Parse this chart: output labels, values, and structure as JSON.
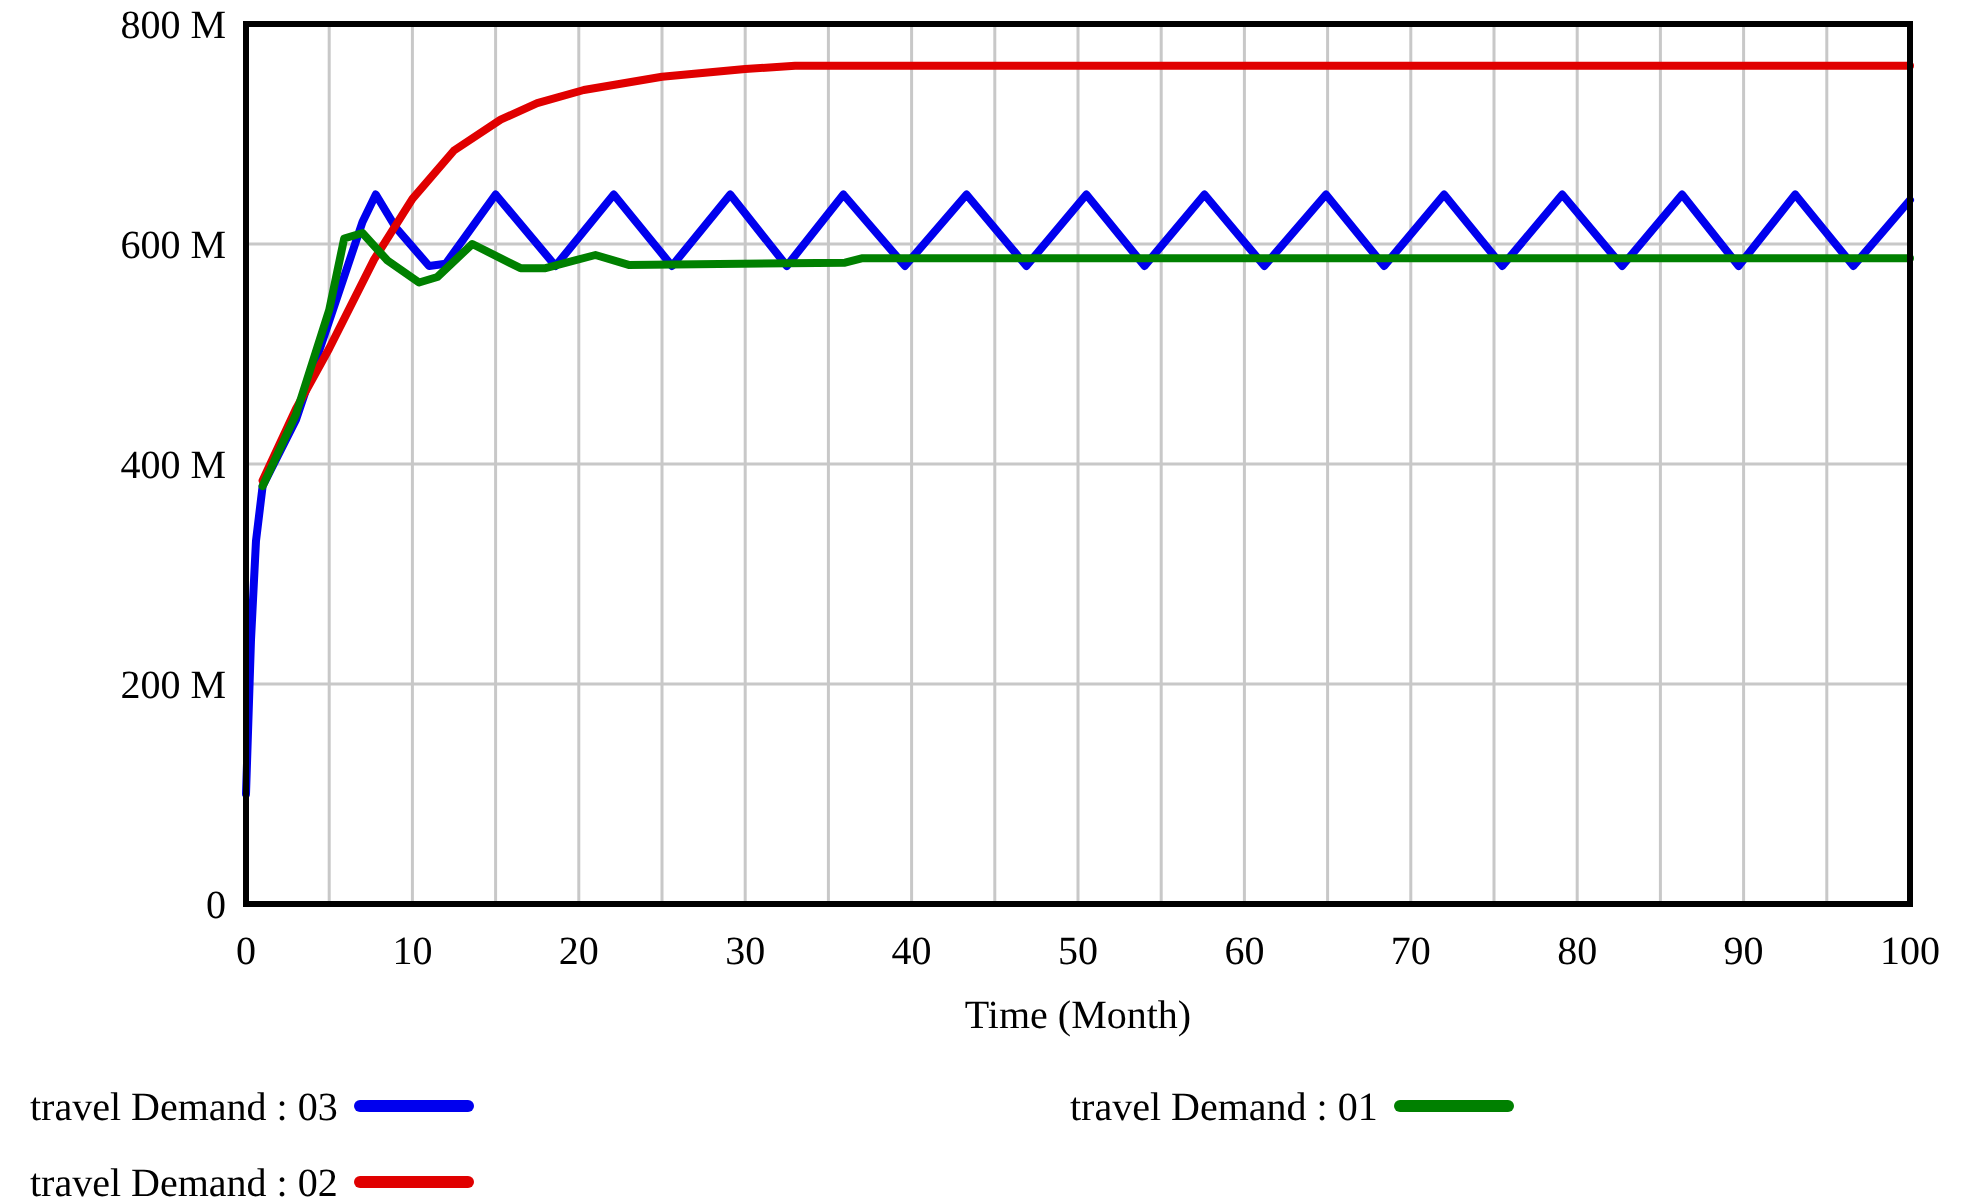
{
  "chart_data": {
    "type": "line",
    "xlabel": "Time (Month)",
    "xlim": [
      0,
      100
    ],
    "xticks": [
      0,
      {
        "value": 5,
        "label": null
      },
      10,
      {
        "value": 15,
        "label": null
      },
      20,
      {
        "value": 25,
        "label": null
      },
      30,
      {
        "value": 35,
        "label": null
      },
      40,
      {
        "value": 45,
        "label": null
      },
      50,
      {
        "value": 55,
        "label": null
      },
      60,
      {
        "value": 65,
        "label": null
      },
      70,
      {
        "value": 75,
        "label": null
      },
      80,
      {
        "value": 85,
        "label": null
      },
      90,
      {
        "value": 95,
        "label": null
      },
      100
    ],
    "ylim": [
      0,
      800
    ],
    "yticks": [
      0,
      {
        "value": 200,
        "label": "200 M"
      },
      {
        "value": 400,
        "label": "400 M"
      },
      {
        "value": 600,
        "label": "600 M"
      },
      {
        "value": 800,
        "label": "800 M"
      }
    ],
    "grid": true,
    "legend": "bottom",
    "marker": "none",
    "line_style": "solid",
    "series": [
      {
        "name": "travel Demand : 03",
        "color": "#0000ee",
        "x": [
          0,
          0.3,
          0.6,
          1,
          3,
          5,
          7,
          7.8,
          9,
          11,
          12,
          15,
          18.6,
          22.1,
          25.6,
          29.1,
          32.5,
          35.9,
          39.6,
          43.3,
          46.9,
          50.5,
          54,
          57.6,
          61.2,
          64.9,
          68.4,
          72,
          75.5,
          79.1,
          82.7,
          86.3,
          89.7,
          93.1,
          96.6,
          100
        ],
        "values": [
          100,
          240,
          330,
          380,
          440,
          530,
          620,
          645,
          615,
          580,
          582,
          645,
          580,
          645,
          580,
          645,
          580,
          645,
          580,
          645,
          580,
          645,
          580,
          645,
          580,
          645,
          580,
          645,
          580,
          645,
          580,
          645,
          580,
          645,
          580,
          640
        ]
      },
      {
        "name": "travel Demand : 02",
        "color": "#e00000",
        "x": [
          1,
          3,
          5,
          7.7,
          10,
          12.5,
          15.3,
          17.5,
          20.3,
          25,
          30,
          33,
          100
        ],
        "values": [
          385,
          450,
          505,
          586,
          641,
          685,
          713,
          728,
          740,
          752,
          759,
          762,
          762
        ]
      },
      {
        "name": "travel Demand : 01",
        "color": "#008000",
        "x": [
          1,
          3,
          5,
          5.9,
          7,
          8.5,
          10.4,
          11.5,
          13.6,
          16.5,
          18,
          21,
          23,
          36,
          37,
          100
        ],
        "values": [
          380,
          445,
          540,
          605,
          610,
          585,
          565,
          570,
          600,
          578,
          578,
          590,
          581,
          583,
          587,
          587
        ]
      }
    ]
  }
}
